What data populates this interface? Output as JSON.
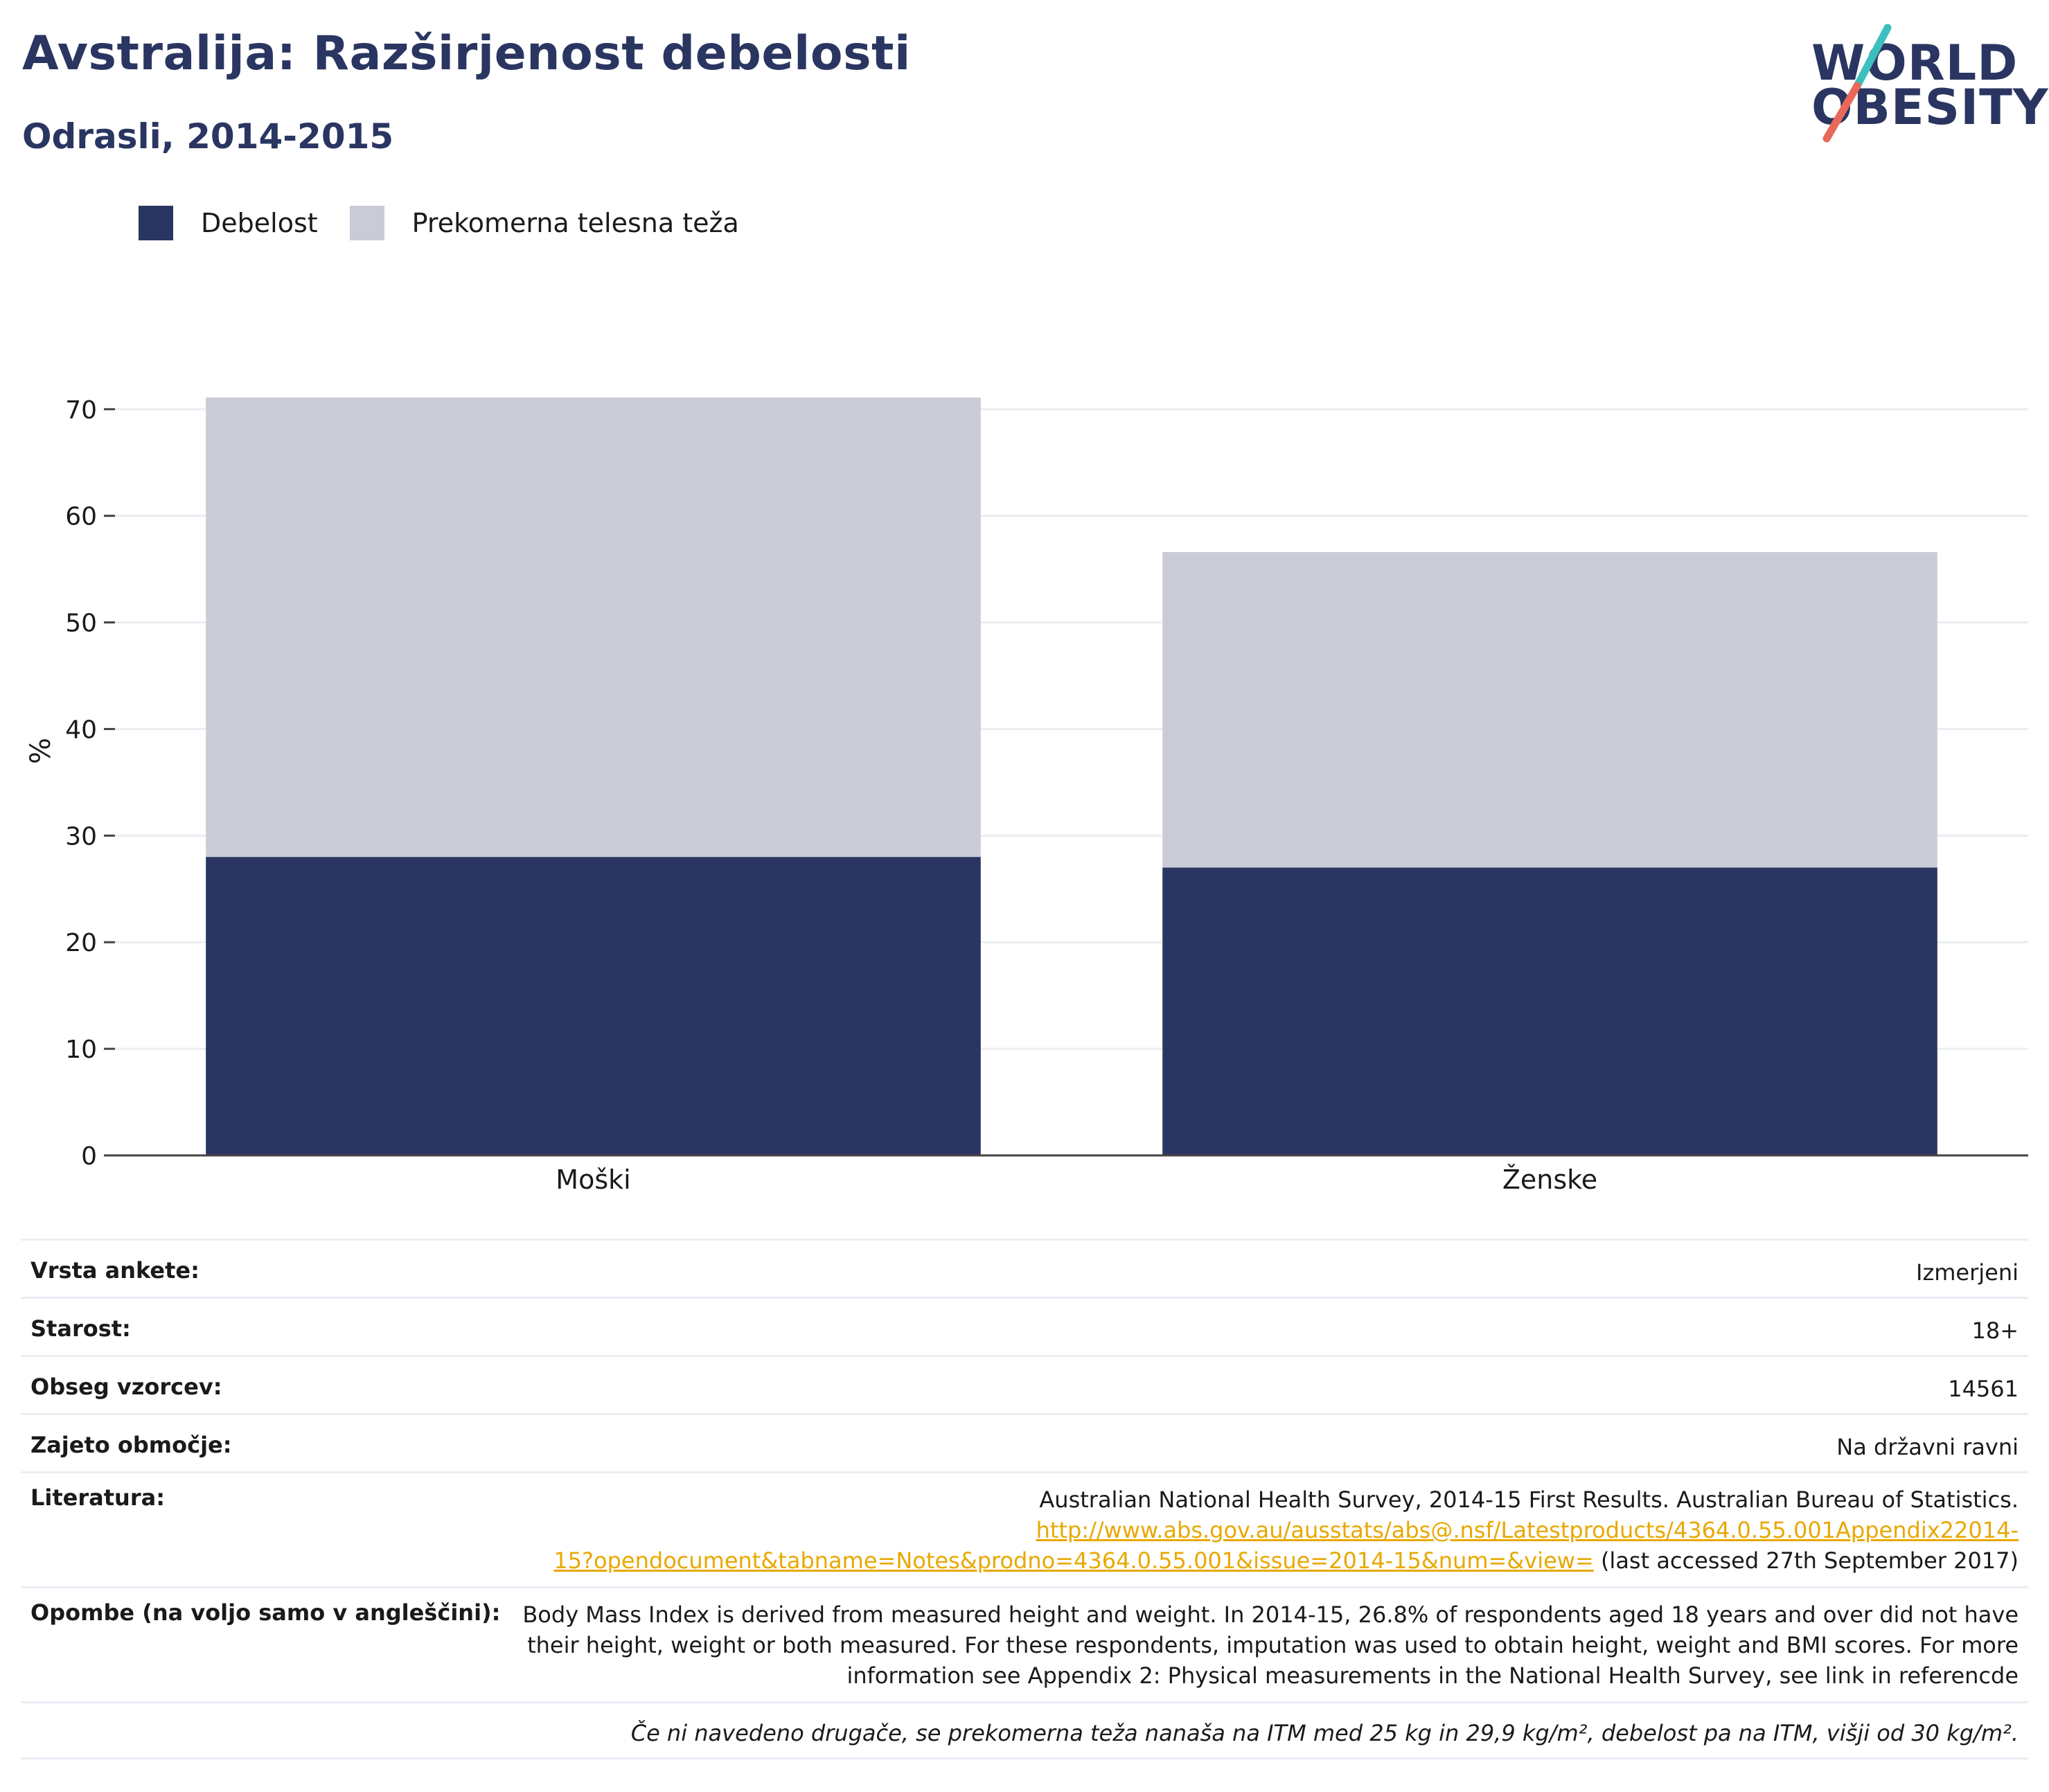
{
  "title": "Avstralija: Razširjenost debelosti",
  "subtitle": "Odrasli, 2014-2015",
  "logo": {
    "line1": "WORLD",
    "line2": "OBESITY",
    "colors": [
      "#2a3661",
      "#3cbfbe",
      "#e8685a"
    ]
  },
  "legend": [
    {
      "label": "Debelost",
      "color": "#2a3661"
    },
    {
      "label": "Prekomerna telesna teža",
      "color": "#c9ccd7"
    }
  ],
  "chart_data": {
    "type": "bar",
    "stacked": true,
    "categories": [
      "Moški",
      "Ženske"
    ],
    "series": [
      {
        "name": "Debelost",
        "color": "#2a3661",
        "values": [
          28,
          27
        ]
      },
      {
        "name": "Prekomerna telesna teža",
        "color": "#c9ccd7",
        "values": [
          43.1,
          29.6
        ]
      }
    ],
    "ylabel": "%",
    "xlabel": "",
    "ylim": [
      0,
      72
    ],
    "yticks": [
      0,
      10,
      20,
      30,
      40,
      50,
      60,
      70
    ],
    "grid": true,
    "legend_position": "top-left"
  },
  "meta": {
    "survey_type": {
      "label": "Vrsta ankete:",
      "value": "Izmerjeni"
    },
    "age": {
      "label": "Starost:",
      "value": "18+"
    },
    "sample": {
      "label": "Obseg vzorcev:",
      "value": "14561"
    },
    "area": {
      "label": "Zajeto območje:",
      "value": "Na državni ravni"
    },
    "literature": {
      "label": "Literatura:",
      "line1": "Australian National Health Survey, 2014-15 First Results. Australian Bureau of Statistics.",
      "link1": "http://www.abs.gov.au/ausstats/abs@.nsf/Latestproducts/4364.0.55.001Appendix22014-",
      "link2": "15?opendocument&tabname=Notes&prodno=4364.0.55.001&issue=2014-15&num=&view=",
      "accessed": " (last accessed 27th September 2017)"
    },
    "notes": {
      "label": "Opombe (na voljo samo v angleščini):",
      "line1": "Body Mass Index is derived from measured height and weight. In 2014-15, 26.8% of respondents aged 18 years and over did not have",
      "line2": "their height, weight or both measured. For these respondents, imputation was used to obtain height, weight and BMI scores. For more",
      "line3": "information see Appendix 2: Physical measurements in the National Health Survey, see link in referencde"
    },
    "footnote": "Če ni navedeno drugače, se prekomerna teža nanaša na ITM med 25 kg in 29,9 kg/m², debelost pa na ITM, višji od 30 kg/m²."
  }
}
